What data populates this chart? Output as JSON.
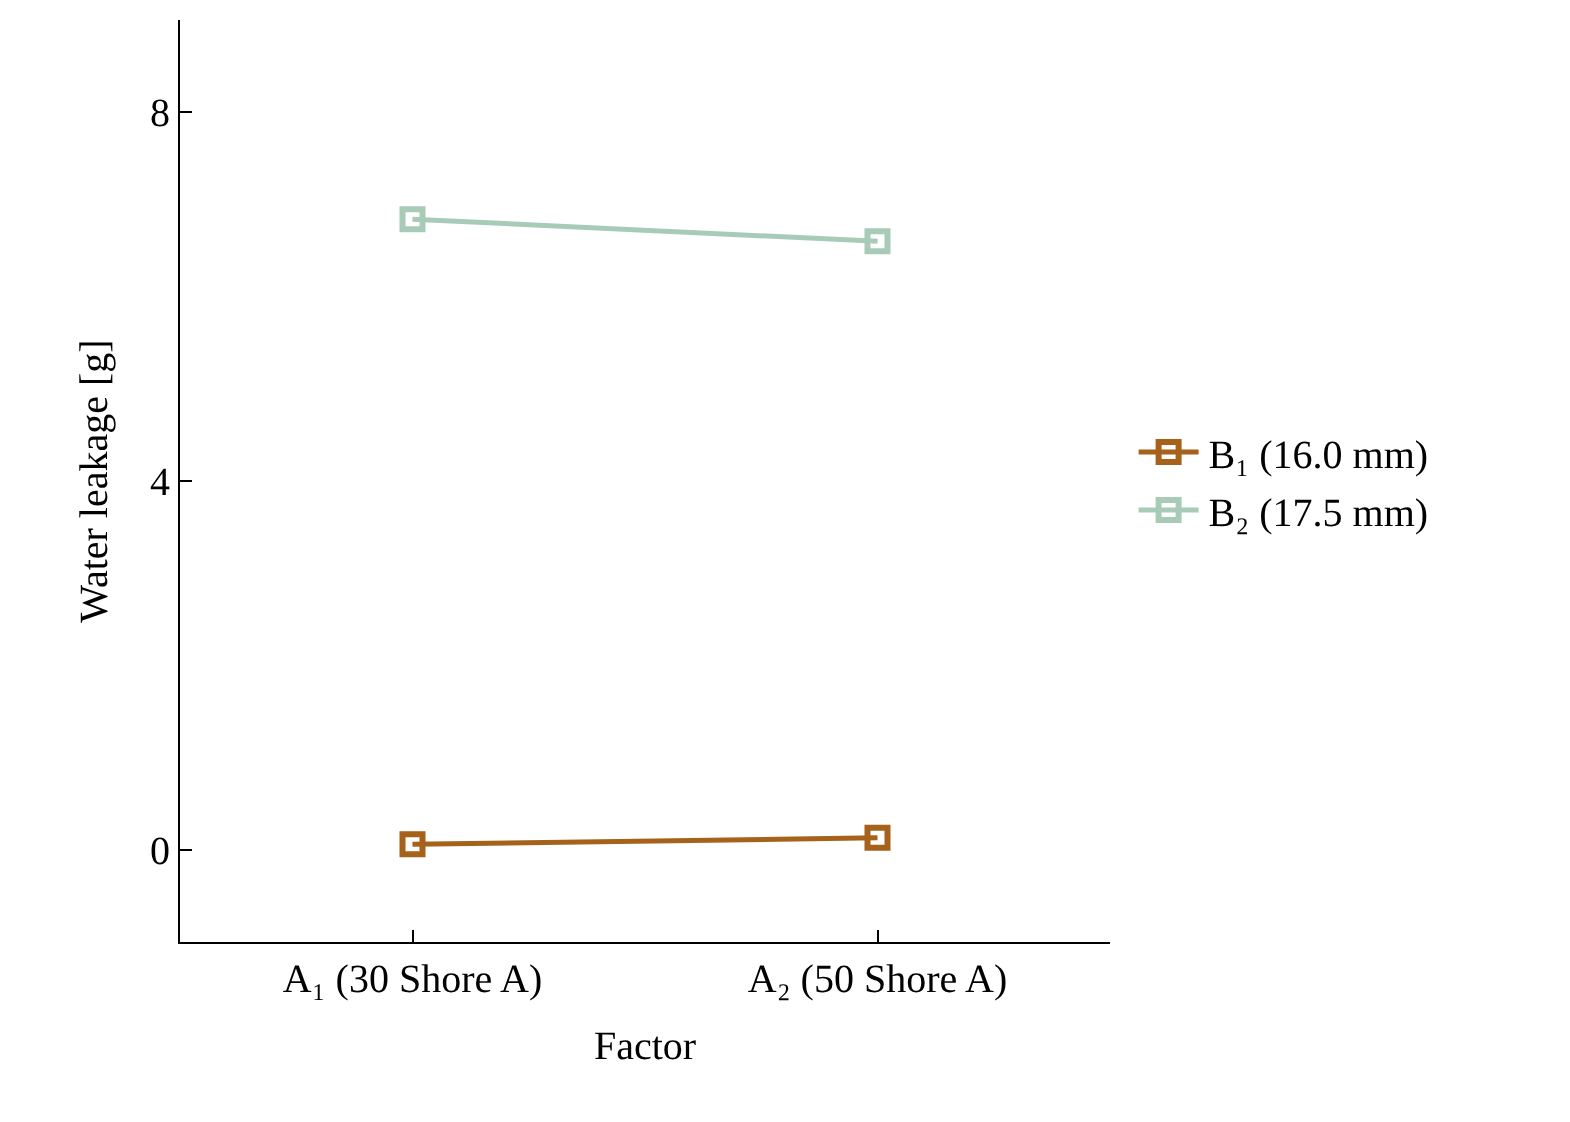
{
  "chart_data": {
    "type": "line",
    "xlabel": "Factor",
    "ylabel": "Water leakage [g]",
    "categories": [
      "A₁ (30 Shore A)",
      "A₂ (50 Shore A)"
    ],
    "series": [
      {
        "name": "B₁ (16.0 mm)",
        "color": "#a6611a",
        "values": [
          0.06,
          0.13
        ]
      },
      {
        "name": "B₂ (17.5 mm)",
        "color": "#a8cbb8",
        "values": [
          6.84,
          6.6
        ]
      }
    ],
    "ylim": [
      -1,
      9
    ],
    "yticks": [
      0,
      4,
      8
    ],
    "legend": "right",
    "marker": "square",
    "line_style": "solid"
  }
}
